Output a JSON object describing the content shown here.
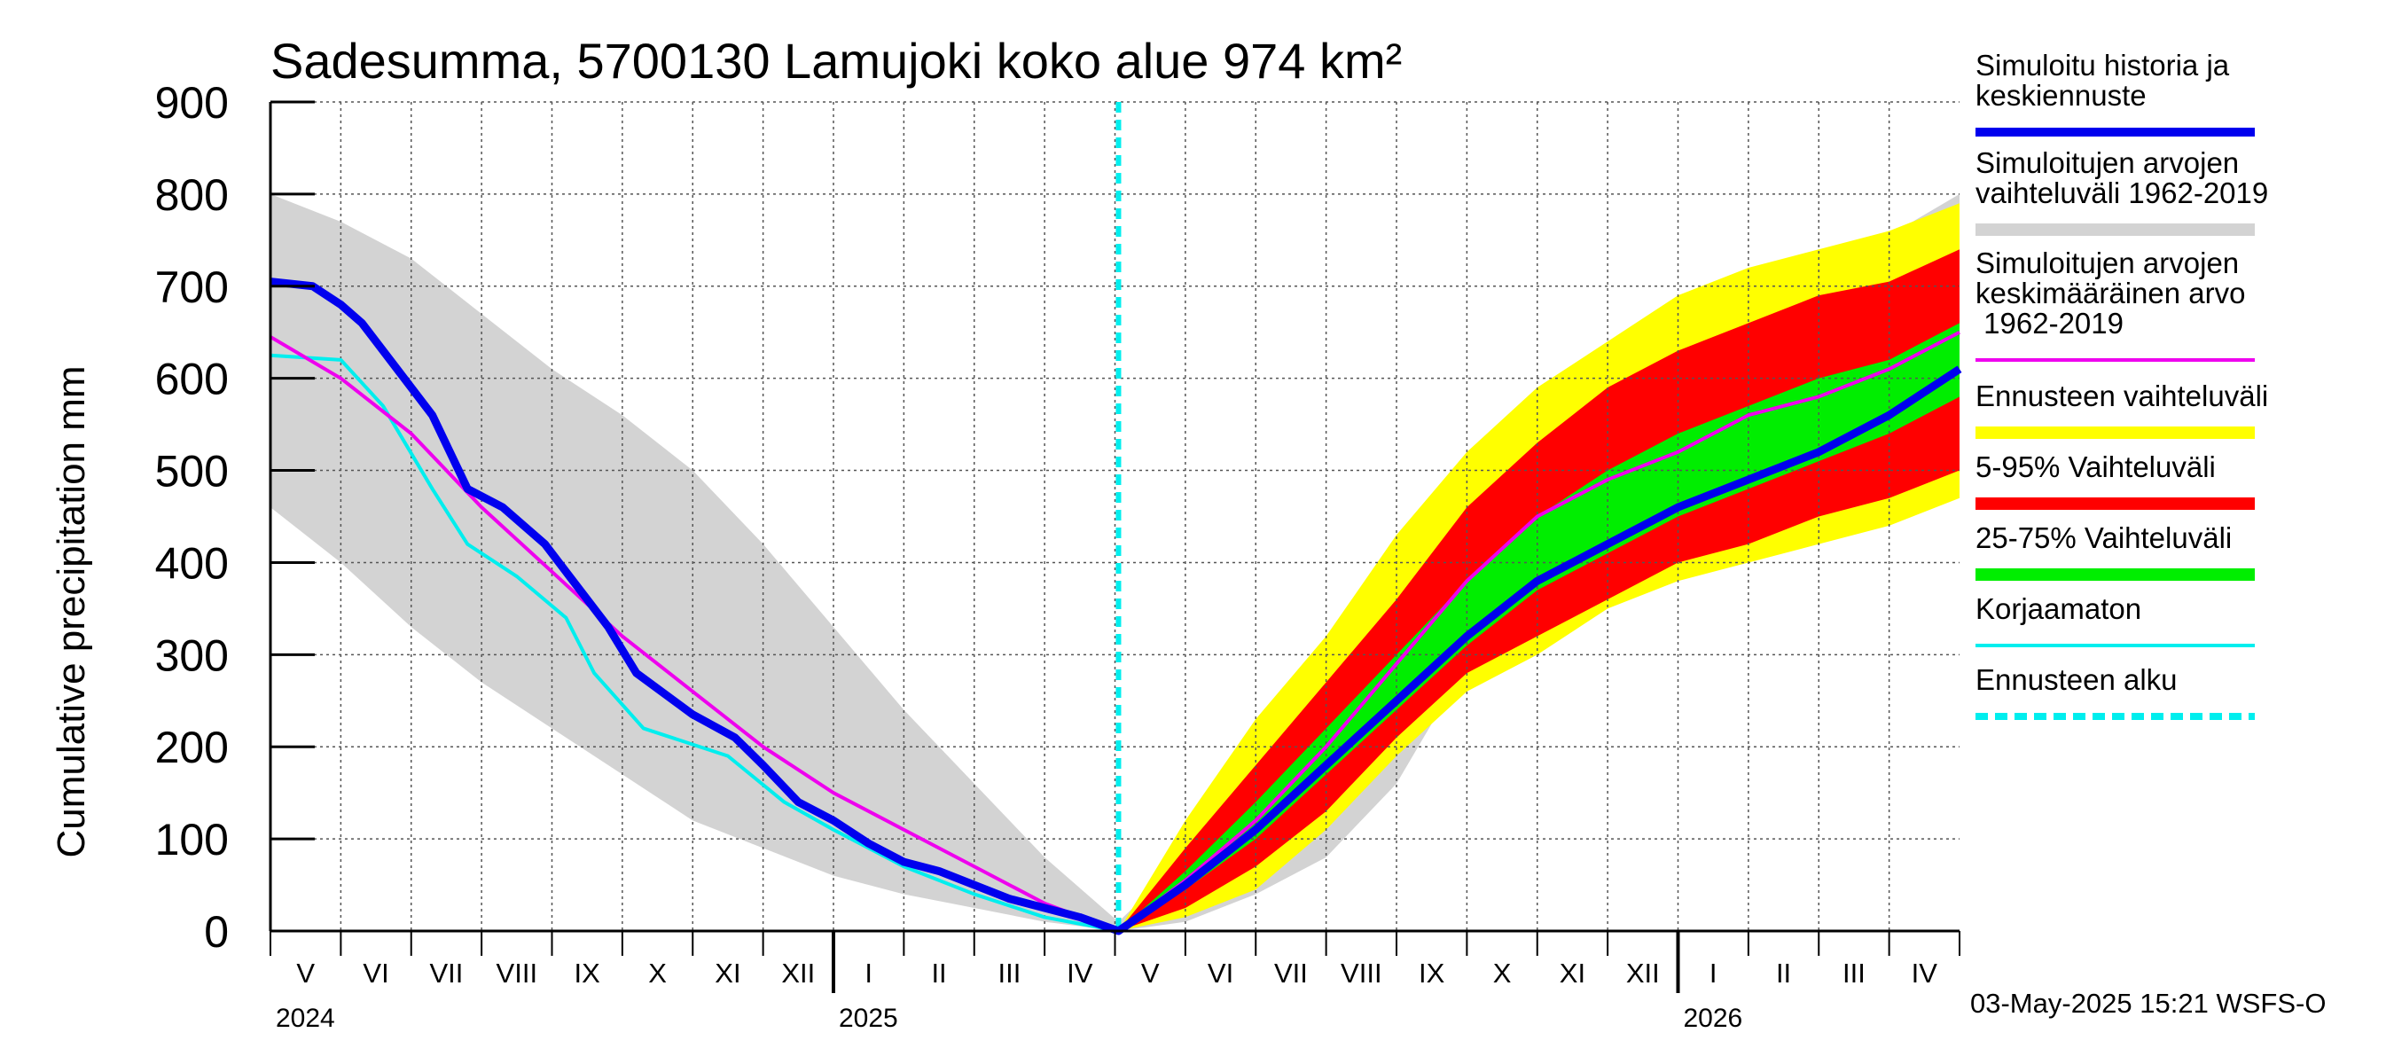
{
  "chart_data": {
    "type": "area",
    "title": "Sadesumma, 5700130 Lamujoki koko alue 974 km²",
    "ylabel": "Cumulative precipitation   mm",
    "ylim": [
      0,
      900
    ],
    "yticks": [
      "0",
      "100",
      "200",
      "300",
      "400",
      "500",
      "600",
      "700",
      "800",
      "900"
    ],
    "x_unit": "months since 2024-05-01",
    "xlim": [
      0,
      24
    ],
    "forecast_start": 12.05,
    "months": [
      "V",
      "VI",
      "VII",
      "VIII",
      "IX",
      "X",
      "XI",
      "XII",
      "I",
      "II",
      "III",
      "IV",
      "V",
      "VI",
      "VII",
      "VIII",
      "IX",
      "X",
      "XI",
      "XII",
      "I",
      "II",
      "III",
      "IV"
    ],
    "years": [
      {
        "label": "2024",
        "x": 0
      },
      {
        "label": "2025",
        "x": 8
      },
      {
        "label": "2026",
        "x": 20
      }
    ],
    "colors": {
      "history": "#0000ee",
      "sim_range": "#d3d3d3",
      "sim_mean": "#ee00ee",
      "forecast_range": "#ffff00",
      "p5_95": "#ff0000",
      "p25_75": "#00ee00",
      "uncorrected": "#00eeee",
      "forecast_start": "#00eeee"
    },
    "series": [
      {
        "name": "Simuloitujen arvojen vaihteluväli 1962-2019 (max)",
        "x": [
          0,
          1,
          2,
          3,
          4,
          5,
          6,
          7,
          8,
          9,
          10,
          11,
          12.05,
          13,
          14,
          15,
          16,
          17,
          18,
          19,
          20,
          21,
          22,
          23,
          24
        ],
        "values": [
          800,
          770,
          730,
          670,
          610,
          560,
          500,
          420,
          330,
          240,
          160,
          80,
          10,
          80,
          180,
          320,
          420,
          510,
          560,
          610,
          650,
          690,
          720,
          755,
          800
        ]
      },
      {
        "name": "Simuloitujen arvojen vaihteluväli 1962-2019 (min)",
        "x": [
          0,
          1,
          2,
          3,
          4,
          5,
          6,
          7,
          8,
          9,
          10,
          11,
          12.05,
          13,
          14,
          15,
          16,
          17,
          18,
          19,
          20,
          21,
          22,
          23,
          24
        ],
        "values": [
          460,
          400,
          330,
          270,
          220,
          170,
          120,
          90,
          60,
          40,
          25,
          10,
          0,
          10,
          40,
          80,
          160,
          290,
          360,
          400,
          420,
          430,
          450,
          470,
          490
        ]
      },
      {
        "name": "Ennusteen vaihteluväli (max)",
        "x": [
          12.05,
          13,
          14,
          15,
          16,
          17,
          18,
          19,
          20,
          21,
          22,
          23,
          24
        ],
        "values": [
          0,
          120,
          230,
          320,
          430,
          520,
          590,
          640,
          690,
          720,
          740,
          760,
          790
        ]
      },
      {
        "name": "Ennusteen vaihteluväli (min)",
        "x": [
          12.05,
          13,
          14,
          15,
          16,
          17,
          18,
          19,
          20,
          21,
          22,
          23,
          24
        ],
        "values": [
          0,
          15,
          45,
          110,
          190,
          260,
          300,
          350,
          380,
          400,
          420,
          440,
          470
        ]
      },
      {
        "name": "5-95% Vaihteluväli (max)",
        "x": [
          12.05,
          13,
          14,
          15,
          16,
          17,
          18,
          19,
          20,
          21,
          22,
          23,
          24
        ],
        "values": [
          0,
          90,
          180,
          270,
          360,
          460,
          530,
          590,
          630,
          660,
          690,
          705,
          740
        ]
      },
      {
        "name": "5-95% Vaihteluväli (min)",
        "x": [
          12.05,
          13,
          14,
          15,
          16,
          17,
          18,
          19,
          20,
          21,
          22,
          23,
          24
        ],
        "values": [
          0,
          25,
          70,
          130,
          210,
          280,
          320,
          360,
          400,
          420,
          450,
          470,
          500
        ]
      },
      {
        "name": "25-75% Vaihteluväli (max)",
        "x": [
          12.05,
          13,
          14,
          15,
          16,
          17,
          18,
          19,
          20,
          21,
          22,
          23,
          24
        ],
        "values": [
          0,
          65,
          140,
          220,
          300,
          380,
          450,
          500,
          540,
          570,
          600,
          620,
          660
        ]
      },
      {
        "name": "25-75% Vaihteluväli (min)",
        "x": [
          12.05,
          13,
          14,
          15,
          16,
          17,
          18,
          19,
          20,
          21,
          22,
          23,
          24
        ],
        "values": [
          0,
          45,
          100,
          170,
          240,
          310,
          370,
          410,
          450,
          480,
          510,
          540,
          580
        ]
      },
      {
        "name": "Simuloitu historia ja keskiennuste",
        "x": [
          0,
          0.6,
          1,
          1.3,
          1.7,
          2.3,
          2.8,
          3.3,
          3.9,
          4.3,
          4.8,
          5.2,
          6,
          6.6,
          7,
          7.5,
          8,
          8.5,
          9,
          9.5,
          10,
          10.5,
          11,
          11.5,
          12.05,
          13,
          14,
          15,
          16,
          17,
          18,
          19,
          20,
          21,
          22,
          23,
          24
        ],
        "values": [
          705,
          700,
          680,
          660,
          620,
          560,
          480,
          460,
          420,
          380,
          330,
          280,
          235,
          210,
          180,
          140,
          120,
          95,
          75,
          65,
          50,
          35,
          25,
          15,
          0,
          50,
          110,
          180,
          250,
          320,
          380,
          420,
          460,
          490,
          520,
          560,
          610
        ]
      },
      {
        "name": "Simuloitujen arvojen keskimääräinen arvo 1962-2019",
        "x": [
          0,
          1,
          2,
          3,
          4,
          5,
          6,
          7,
          8,
          9,
          10,
          11,
          12.05,
          13,
          14,
          15,
          16,
          17,
          18,
          19,
          20,
          21,
          22,
          23,
          24
        ],
        "values": [
          645,
          600,
          540,
          460,
          390,
          320,
          260,
          200,
          150,
          110,
          70,
          30,
          0,
          55,
          120,
          200,
          290,
          380,
          450,
          490,
          520,
          560,
          580,
          610,
          650
        ]
      },
      {
        "name": "Korjaamaton",
        "x": [
          0,
          1,
          1.6,
          2.3,
          2.8,
          3.5,
          4.2,
          4.6,
          5.3,
          6.5,
          7.3,
          8,
          9,
          10,
          11,
          12.05
        ],
        "values": [
          625,
          620,
          570,
          480,
          420,
          385,
          340,
          280,
          220,
          190,
          140,
          110,
          70,
          40,
          15,
          0
        ]
      }
    ]
  },
  "legend": [
    {
      "label": "Simuloitu historia ja keskiennuste",
      "color": "#0000ee",
      "style": "line"
    },
    {
      "label": "Simuloitujen arvojen vaihteluväli 1962-2019",
      "color": "#d3d3d3",
      "style": "band"
    },
    {
      "label": "Simuloitujen arvojen keskimääräinen arvo 1962-2019",
      "color": "#ee00ee",
      "style": "thin"
    },
    {
      "label": "Ennusteen vaihteluväli",
      "color": "#ffff00",
      "style": "band"
    },
    {
      "label": "5-95% Vaihteluväli",
      "color": "#ff0000",
      "style": "band"
    },
    {
      "label": "25-75% Vaihteluväli",
      "color": "#00ee00",
      "style": "band"
    },
    {
      "label": "Korjaamaton",
      "color": "#00eeee",
      "style": "thin"
    },
    {
      "label": "Ennusteen alku",
      "color": "#00eeee",
      "style": "dashed"
    }
  ],
  "footer": {
    "timestamp": "03-May-2025 15:21 WSFS-O"
  }
}
